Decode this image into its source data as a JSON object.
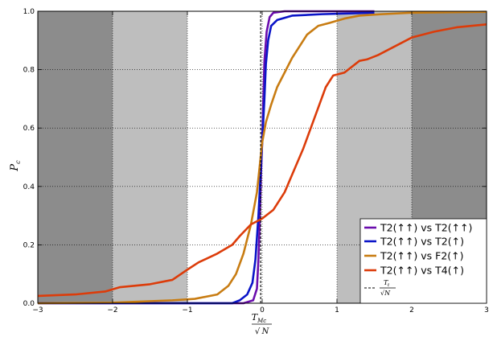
{
  "chart_data": {
    "type": "line",
    "title": "",
    "xlabel": {
      "numerator": "T",
      "numerator_sub": "Mc",
      "denominator": "N"
    },
    "ylabel": {
      "symbol": "P",
      "sub": "c"
    },
    "xlim": [
      -3,
      3
    ],
    "ylim": [
      0,
      1
    ],
    "x_ticks": [
      -3,
      -2,
      -1,
      0,
      1,
      2,
      3
    ],
    "x_tick_labels": [
      "−3",
      "−2",
      "−1",
      "0",
      "1",
      "2",
      "3"
    ],
    "y_ticks": [
      0,
      0.2,
      0.4,
      0.6,
      0.8,
      1.0
    ],
    "y_tick_labels": [
      "0.0",
      "0.2",
      "0.4",
      "0.6",
      "0.8",
      "1.0"
    ],
    "grid": true,
    "shaded_bands": [
      {
        "from": -3,
        "to": -2,
        "color": "#8c8c8c"
      },
      {
        "from": -2,
        "to": -1,
        "color": "#bebebe"
      },
      {
        "from": 1,
        "to": 2,
        "color": "#bebebe"
      },
      {
        "from": 2,
        "to": 3,
        "color": "#8c8c8c"
      }
    ],
    "legend_position": "bottom-right",
    "series": [
      {
        "name": "T2(↑↑) vs T2(↑↑)",
        "color": "#6a0dad",
        "points": [
          [
            -3,
            0
          ],
          [
            -0.25,
            0
          ],
          [
            -0.12,
            0.01
          ],
          [
            -0.07,
            0.05
          ],
          [
            -0.05,
            0.15
          ],
          [
            -0.03,
            0.3
          ],
          [
            -0.015,
            0.45
          ],
          [
            0,
            0.55
          ],
          [
            0.015,
            0.7
          ],
          [
            0.03,
            0.83
          ],
          [
            0.06,
            0.93
          ],
          [
            0.1,
            0.98
          ],
          [
            0.15,
            0.995
          ],
          [
            0.3,
            1.0
          ],
          [
            1.5,
            1.0
          ]
        ]
      },
      {
        "name": "T2(↑↑) vs T2(↑)",
        "color": "#0a14c8",
        "points": [
          [
            -3,
            0
          ],
          [
            -0.4,
            0
          ],
          [
            -0.3,
            0.01
          ],
          [
            -0.2,
            0.03
          ],
          [
            -0.13,
            0.07
          ],
          [
            -0.09,
            0.15
          ],
          [
            -0.05,
            0.3
          ],
          [
            -0.02,
            0.45
          ],
          [
            0,
            0.55
          ],
          [
            0.03,
            0.7
          ],
          [
            0.05,
            0.82
          ],
          [
            0.08,
            0.9
          ],
          [
            0.12,
            0.95
          ],
          [
            0.2,
            0.97
          ],
          [
            0.4,
            0.985
          ],
          [
            0.8,
            0.99
          ],
          [
            1.5,
            0.995
          ]
        ]
      },
      {
        "name": "T2(↑↑) vs F2(↑)",
        "color": "#c87c12",
        "points": [
          [
            -3,
            0
          ],
          [
            -2.0,
            0.002
          ],
          [
            -1.2,
            0.01
          ],
          [
            -0.9,
            0.015
          ],
          [
            -0.6,
            0.03
          ],
          [
            -0.45,
            0.06
          ],
          [
            -0.35,
            0.1
          ],
          [
            -0.25,
            0.17
          ],
          [
            -0.15,
            0.27
          ],
          [
            -0.07,
            0.38
          ],
          [
            0,
            0.55
          ],
          [
            0.05,
            0.62
          ],
          [
            0.12,
            0.68
          ],
          [
            0.2,
            0.74
          ],
          [
            0.3,
            0.79
          ],
          [
            0.4,
            0.84
          ],
          [
            0.5,
            0.88
          ],
          [
            0.6,
            0.92
          ],
          [
            0.75,
            0.95
          ],
          [
            0.9,
            0.96
          ],
          [
            1.1,
            0.975
          ],
          [
            1.3,
            0.985
          ],
          [
            1.6,
            0.99
          ],
          [
            2.0,
            0.995
          ],
          [
            3,
            0.998
          ]
        ]
      },
      {
        "name": "T2(↑↑) vs T4(↑)",
        "color": "#dc3c0a",
        "points": [
          [
            -3,
            0.025
          ],
          [
            -2.5,
            0.03
          ],
          [
            -2.1,
            0.04
          ],
          [
            -1.9,
            0.055
          ],
          [
            -1.5,
            0.065
          ],
          [
            -1.2,
            0.08
          ],
          [
            -1.0,
            0.115
          ],
          [
            -0.85,
            0.14
          ],
          [
            -0.6,
            0.17
          ],
          [
            -0.4,
            0.2
          ],
          [
            -0.3,
            0.23
          ],
          [
            -0.15,
            0.27
          ],
          [
            0,
            0.29
          ],
          [
            0.15,
            0.32
          ],
          [
            0.3,
            0.38
          ],
          [
            0.45,
            0.47
          ],
          [
            0.55,
            0.53
          ],
          [
            0.65,
            0.6
          ],
          [
            0.75,
            0.67
          ],
          [
            0.85,
            0.74
          ],
          [
            0.95,
            0.78
          ],
          [
            1.1,
            0.79
          ],
          [
            1.3,
            0.83
          ],
          [
            1.4,
            0.835
          ],
          [
            1.55,
            0.85
          ],
          [
            1.7,
            0.87
          ],
          [
            1.85,
            0.89
          ],
          [
            2.0,
            0.91
          ],
          [
            2.3,
            0.93
          ],
          [
            2.6,
            0.945
          ],
          [
            3,
            0.955
          ]
        ]
      },
      {
        "name": "T_t / √N",
        "color": "#000000",
        "dashed": true,
        "points": [
          [
            -0.02,
            0
          ],
          [
            -0.02,
            1
          ],
          [
            0,
            1
          ],
          [
            3,
            1
          ]
        ]
      }
    ]
  }
}
